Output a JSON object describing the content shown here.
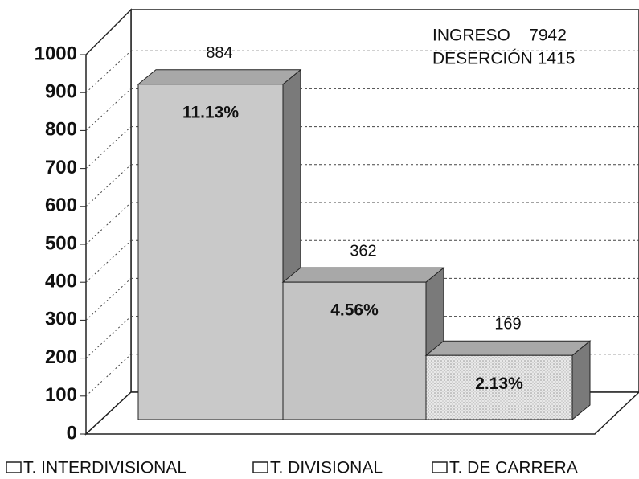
{
  "chart_data": {
    "type": "bar3d",
    "categories": [
      "T. INTERDIVISIONAL",
      "T. DIVISIONAL",
      "T. DE CARRERA"
    ],
    "values": [
      884,
      362,
      169
    ],
    "percent_labels": [
      "11.13%",
      "4.56%",
      "2.13%"
    ],
    "annotations": [
      "INGRESO    7942",
      "DESERCIÓN 1415"
    ],
    "ylim": [
      0,
      1000
    ],
    "yticks": [
      0,
      100,
      200,
      300,
      400,
      500,
      600,
      700,
      800,
      900,
      1000
    ],
    "grid": true,
    "legend": "bottom",
    "colors": [
      "#c9c9c9",
      "#c4c4c4",
      "#e4e4e4"
    ]
  }
}
